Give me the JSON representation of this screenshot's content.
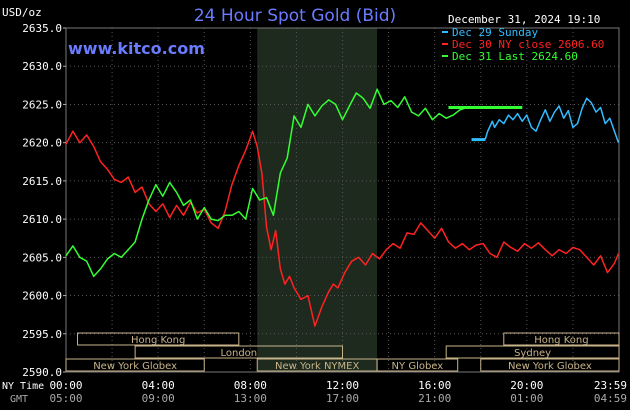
{
  "chart_data": {
    "type": "line",
    "title": "24 Hour Spot Gold (Bid)",
    "source": "www.kitco.com",
    "unit_label": "USD/oz",
    "timestamp": "December 31, 2024 19:10",
    "ylim": [
      2590,
      2635
    ],
    "y_ticks": [
      "2635.0",
      "2630.0",
      "2625.0",
      "2620.0",
      "2615.0",
      "2610.0",
      "2605.0",
      "2600.0",
      "2595.0",
      "2590.0"
    ],
    "x_row_labels": [
      "NY Time",
      "GMT"
    ],
    "x_ticks_ny": [
      "00:00",
      "04:00",
      "08:00",
      "12:00",
      "16:00",
      "20:00",
      "23:59"
    ],
    "x_ticks_gmt": [
      "05:00",
      "09:00",
      "13:00",
      "17:00",
      "21:00",
      "01:00",
      "04:59"
    ],
    "grid": true,
    "legend_position": "top-right",
    "colors": {
      "dec29": "#33bbff",
      "dec30": "#ff2222",
      "dec31": "#33ff33",
      "highlight": "#1e2a1e",
      "grid": "#555555",
      "session": "#c8b48a",
      "text": "#ffffff",
      "title": "#6a7bff"
    },
    "series": [
      {
        "name": "Dec 29 Sunday",
        "legend_key": "dec29",
        "x": [
          18.0,
          18.1,
          18.2,
          18.3,
          18.5,
          18.6,
          18.8,
          19.0,
          19.2,
          19.4,
          19.6,
          19.8,
          20.0,
          20.2,
          20.4,
          20.6,
          20.8,
          21.0,
          21.2,
          21.4,
          21.6,
          21.8,
          22.0,
          22.2,
          22.4,
          22.6,
          22.8,
          23.0,
          23.2,
          23.4,
          23.6,
          23.8,
          23.98
        ],
        "y": [
          2620.4,
          2620.4,
          2620.5,
          2621.5,
          2622.8,
          2622.0,
          2623.0,
          2622.5,
          2623.6,
          2623.0,
          2623.8,
          2622.8,
          2623.6,
          2622.0,
          2621.5,
          2623.0,
          2624.3,
          2622.8,
          2624.0,
          2624.8,
          2623.2,
          2624.2,
          2622.0,
          2622.5,
          2624.5,
          2625.8,
          2625.2,
          2624.0,
          2624.6,
          2622.5,
          2623.2,
          2621.5,
          2620.0
        ]
      },
      {
        "name": "Dec 30 NY close 2606.60",
        "legend_key": "dec30",
        "x": [
          0.0,
          0.3,
          0.6,
          0.9,
          1.2,
          1.5,
          1.8,
          2.1,
          2.4,
          2.7,
          3.0,
          3.3,
          3.6,
          3.9,
          4.2,
          4.5,
          4.8,
          5.1,
          5.4,
          5.7,
          6.0,
          6.3,
          6.6,
          6.9,
          7.2,
          7.5,
          7.8,
          8.1,
          8.3,
          8.5,
          8.7,
          8.9,
          9.1,
          9.3,
          9.5,
          9.7,
          9.9,
          10.2,
          10.5,
          10.8,
          11.1,
          11.4,
          11.6,
          11.8,
          12.1,
          12.4,
          12.7,
          13.0,
          13.3,
          13.6,
          13.9,
          14.2,
          14.5,
          14.8,
          15.1,
          15.4,
          15.7,
          16.0,
          16.3,
          16.6,
          16.9,
          17.2,
          17.5,
          17.8,
          18.1,
          18.4,
          18.7,
          19.0,
          19.3,
          19.6,
          19.9,
          20.2,
          20.5,
          20.8,
          21.1,
          21.4,
          21.7,
          22.0,
          22.3,
          22.6,
          22.9,
          23.2,
          23.5,
          23.8,
          23.98
        ],
        "y": [
          2619.8,
          2621.5,
          2620.0,
          2621.0,
          2619.5,
          2617.5,
          2616.5,
          2615.2,
          2614.8,
          2615.5,
          2613.5,
          2614.2,
          2612.0,
          2611.0,
          2612.0,
          2610.2,
          2611.8,
          2610.5,
          2612.2,
          2610.8,
          2611.3,
          2609.5,
          2608.8,
          2611.0,
          2614.5,
          2617.0,
          2619.0,
          2621.5,
          2619.5,
          2616.0,
          2609.0,
          2606.0,
          2608.5,
          2603.5,
          2601.5,
          2602.5,
          2601.0,
          2599.5,
          2600.0,
          2596.0,
          2598.5,
          2600.5,
          2601.5,
          2601.0,
          2603.0,
          2604.5,
          2605.0,
          2604.0,
          2605.5,
          2604.8,
          2606.0,
          2606.8,
          2606.2,
          2608.2,
          2608.0,
          2609.5,
          2608.5,
          2607.5,
          2608.8,
          2607.0,
          2606.2,
          2606.8,
          2606.0,
          2606.6,
          2606.8,
          2605.5,
          2605.0,
          2607.0,
          2606.3,
          2605.8,
          2606.8,
          2606.2,
          2606.9,
          2606.0,
          2605.2,
          2606.0,
          2605.5,
          2606.3,
          2606.0,
          2605.0,
          2604.0,
          2605.2,
          2603.0,
          2604.2,
          2605.5
        ]
      },
      {
        "name": "Dec 31 Last 2624.60",
        "legend_key": "dec31",
        "x": [
          0.0,
          0.3,
          0.6,
          0.9,
          1.2,
          1.5,
          1.8,
          2.1,
          2.4,
          2.7,
          3.0,
          3.3,
          3.6,
          3.9,
          4.2,
          4.5,
          4.8,
          5.1,
          5.4,
          5.7,
          6.0,
          6.3,
          6.6,
          6.9,
          7.2,
          7.5,
          7.8,
          8.1,
          8.4,
          8.7,
          9.0,
          9.3,
          9.6,
          9.9,
          10.2,
          10.5,
          10.8,
          11.1,
          11.4,
          11.7,
          12.0,
          12.3,
          12.6,
          12.9,
          13.2,
          13.5,
          13.8,
          14.1,
          14.4,
          14.7,
          15.0,
          15.3,
          15.6,
          15.9,
          16.2,
          16.5,
          16.8,
          17.1,
          17.4,
          17.7,
          18.0,
          18.3,
          18.6,
          18.9,
          19.2,
          19.5,
          19.8
        ],
        "y": [
          2605.2,
          2606.5,
          2605.0,
          2604.5,
          2602.5,
          2603.5,
          2604.8,
          2605.5,
          2605.0,
          2606.0,
          2607.0,
          2610.0,
          2612.5,
          2614.5,
          2613.0,
          2614.8,
          2613.5,
          2611.8,
          2612.5,
          2610.0,
          2611.5,
          2610.0,
          2609.8,
          2610.5,
          2610.5,
          2611.0,
          2610.0,
          2614.0,
          2612.5,
          2612.8,
          2610.5,
          2616.0,
          2618.0,
          2623.5,
          2622.0,
          2625.0,
          2623.5,
          2624.8,
          2625.6,
          2625.0,
          2623.0,
          2624.8,
          2626.5,
          2625.8,
          2624.5,
          2627.0,
          2625.0,
          2625.5,
          2624.6,
          2626.0,
          2624.0,
          2623.5,
          2624.5,
          2623.0,
          2623.8,
          2623.2,
          2623.6,
          2624.3,
          2624.6,
          2624.6,
          2624.6,
          2624.6,
          2624.6,
          2624.6,
          2624.6,
          2624.6,
          2624.6
        ]
      }
    ],
    "session_rows": [
      {
        "label": "Hong Kong",
        "start": 0.5,
        "end": 7.5,
        "row": 1
      },
      {
        "label": "Hong Kong",
        "start": 19.0,
        "end": 24.0,
        "row": 1
      },
      {
        "label": "London",
        "start": 3.0,
        "end": 12.0,
        "row": 2
      },
      {
        "label": "Sydney",
        "start": 16.5,
        "end": 24.0,
        "row": 2
      },
      {
        "label": "New York Globex",
        "start": 0.0,
        "end": 6.0,
        "row": 3
      },
      {
        "label": "New York NYMEX",
        "start": 8.3,
        "end": 13.5,
        "row": 3
      },
      {
        "label": "NY Globex",
        "start": 13.5,
        "end": 17.0,
        "row": 3
      },
      {
        "label": "New York Globex",
        "start": 18.0,
        "end": 24.0,
        "row": 3
      }
    ]
  }
}
